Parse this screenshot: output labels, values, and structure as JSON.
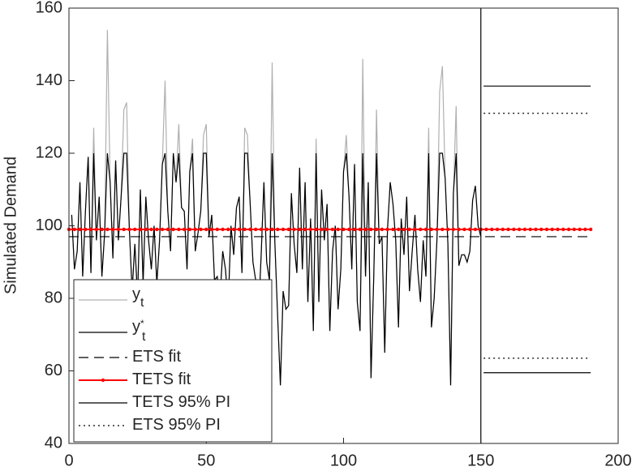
{
  "chart_data": {
    "type": "line",
    "ylabel": "Simulated Demand",
    "xlim": [
      0,
      200
    ],
    "xticks": [
      0,
      50,
      100,
      150,
      200
    ],
    "ylim": [
      40,
      160
    ],
    "yticks": [
      40,
      60,
      80,
      100,
      120,
      140,
      160
    ],
    "vline": 150,
    "legend": "lower left",
    "x": [
      1,
      2,
      3,
      4,
      5,
      6,
      7,
      8,
      9,
      10,
      11,
      12,
      13,
      14,
      15,
      16,
      17,
      18,
      19,
      20,
      21,
      22,
      23,
      24,
      25,
      26,
      27,
      28,
      29,
      30,
      31,
      32,
      33,
      34,
      35,
      36,
      37,
      38,
      39,
      40,
      41,
      42,
      43,
      44,
      45,
      46,
      47,
      48,
      49,
      50,
      51,
      52,
      53,
      54,
      55,
      56,
      57,
      58,
      59,
      60,
      61,
      62,
      63,
      64,
      65,
      66,
      67,
      68,
      69,
      70,
      71,
      72,
      73,
      74,
      75,
      76,
      77,
      78,
      79,
      80,
      81,
      82,
      83,
      84,
      85,
      86,
      87,
      88,
      89,
      90,
      91,
      92,
      93,
      94,
      95,
      96,
      97,
      98,
      99,
      100,
      101,
      102,
      103,
      104,
      105,
      106,
      107,
      108,
      109,
      110,
      111,
      112,
      113,
      114,
      115,
      116,
      117,
      118,
      119,
      120,
      121,
      122,
      123,
      124,
      125,
      126,
      127,
      128,
      129,
      130,
      131,
      132,
      133,
      134,
      135,
      136,
      137,
      138,
      139,
      140,
      141,
      142,
      143,
      144,
      145,
      146,
      147,
      148,
      149,
      150
    ],
    "series": [
      {
        "name": "y",
        "name_sub": "t",
        "color": "#b0b0b0",
        "style": "solid",
        "values": [
          103,
          88,
          93,
          112,
          86,
          104,
          119,
          87,
          127,
          96,
          108,
          86,
          98,
          154,
          112,
          91,
          118,
          96,
          108,
          132,
          134,
          99,
          82,
          95,
          80,
          110,
          84,
          108,
          96,
          88,
          100,
          84,
          96,
          117,
          140,
          104,
          93,
          120,
          112,
          128,
          105,
          104,
          88,
          115,
          124,
          93,
          98,
          104,
          125,
          128,
          97,
          103,
          85,
          86,
          80,
          93,
          88,
          78,
          100,
          92,
          105,
          108,
          87,
          127,
          125,
          106,
          90,
          85,
          75,
          92,
          112,
          90,
          85,
          145,
          95,
          75,
          56,
          82,
          77,
          78,
          109,
          95,
          87,
          116,
          88,
          112,
          79,
          102,
          71,
          124,
          79,
          110,
          96,
          106,
          71,
          93,
          100,
          77,
          88,
          115,
          125,
          108,
          88,
          117,
          79,
          71,
          146,
          86,
          112,
          58,
          86,
          132,
          95,
          97,
          65,
          99,
          112,
          106,
          96,
          72,
          102,
          92,
          108,
          82,
          93,
          103,
          88,
          79,
          96,
          86,
          127,
          72,
          80,
          96,
          137,
          144,
          113,
          95,
          56,
          109,
          133,
          89,
          92,
          92,
          90,
          93,
          107,
          111,
          100,
          97
        ]
      },
      {
        "name": "y",
        "name_sub": "t",
        "name_sup": "*",
        "color": "#000000",
        "style": "solid",
        "values": [
          103,
          88,
          93,
          112,
          86,
          104,
          119,
          87,
          120,
          96,
          108,
          86,
          98,
          120,
          112,
          91,
          118,
          96,
          108,
          120,
          120,
          99,
          82,
          95,
          80,
          110,
          84,
          108,
          96,
          88,
          100,
          84,
          96,
          117,
          120,
          104,
          93,
          120,
          112,
          120,
          105,
          104,
          88,
          115,
          120,
          93,
          98,
          104,
          120,
          120,
          97,
          103,
          85,
          86,
          80,
          93,
          88,
          78,
          100,
          92,
          105,
          108,
          87,
          120,
          120,
          106,
          90,
          85,
          75,
          92,
          112,
          90,
          85,
          120,
          95,
          75,
          56,
          82,
          77,
          78,
          109,
          95,
          87,
          116,
          88,
          112,
          79,
          102,
          71,
          120,
          79,
          110,
          96,
          106,
          71,
          93,
          100,
          77,
          88,
          115,
          120,
          108,
          88,
          117,
          79,
          71,
          120,
          86,
          112,
          58,
          86,
          120,
          95,
          97,
          65,
          99,
          112,
          106,
          96,
          72,
          102,
          92,
          108,
          82,
          93,
          103,
          88,
          79,
          96,
          86,
          120,
          72,
          80,
          96,
          120,
          120,
          113,
          95,
          56,
          109,
          120,
          89,
          92,
          92,
          90,
          93,
          107,
          111,
          100,
          97
        ]
      },
      {
        "name": "ETS fit",
        "color": "#000000",
        "style": "dashed",
        "x": [
          0,
          190
        ],
        "values": [
          97,
          97
        ]
      },
      {
        "name": "TETS fit",
        "color": "#ff0000",
        "style": "solid",
        "marker": "dot",
        "x": [
          0,
          2,
          4,
          6,
          8,
          10,
          12,
          14,
          16,
          18,
          20,
          22,
          24,
          26,
          28,
          30,
          32,
          34,
          36,
          38,
          40,
          42,
          44,
          46,
          48,
          50,
          52,
          54,
          56,
          58,
          60,
          62,
          64,
          66,
          68,
          70,
          72,
          74,
          76,
          78,
          80,
          82,
          84,
          86,
          88,
          90,
          92,
          94,
          96,
          98,
          100,
          102,
          104,
          106,
          108,
          110,
          112,
          114,
          116,
          118,
          120,
          122,
          124,
          126,
          128,
          130,
          132,
          134,
          136,
          138,
          140,
          142,
          144,
          146,
          148,
          150,
          152,
          154,
          156,
          158,
          160,
          162,
          164,
          166,
          168,
          170,
          172,
          174,
          176,
          178,
          180,
          182,
          184,
          186,
          188,
          190
        ],
        "values": [
          99,
          99,
          99,
          99,
          99,
          99,
          99,
          99,
          99,
          99,
          99,
          99,
          99,
          99,
          99,
          99,
          99,
          99,
          99,
          99,
          99,
          99,
          99,
          99,
          99,
          99,
          99,
          99,
          99,
          99,
          99,
          99,
          99,
          99,
          99,
          99,
          99,
          99,
          99,
          99,
          99,
          99,
          99,
          99,
          99,
          99,
          99,
          99,
          99,
          99,
          99,
          99,
          99,
          99,
          99,
          99,
          99,
          99,
          99,
          99,
          99,
          99,
          99,
          99,
          99,
          99,
          99,
          99,
          99,
          99,
          99,
          99,
          99,
          99,
          99,
          99,
          99,
          99,
          99,
          99,
          99,
          99,
          99,
          99,
          99,
          99,
          99,
          99,
          99,
          99,
          99,
          99,
          99,
          99,
          99,
          99
        ]
      },
      {
        "name": "TETS 95% PI",
        "color": "#000000",
        "style": "solid",
        "x": [
          151,
          190
        ],
        "values": [
          138.5,
          138.5
        ]
      },
      {
        "color": "#000000",
        "style": "solid",
        "x": [
          151,
          190
        ],
        "values": [
          59.5,
          59.5
        ]
      },
      {
        "name": "ETS 95% PI",
        "color": "#000000",
        "style": "dotted",
        "x": [
          151,
          190
        ],
        "values": [
          131,
          131
        ]
      },
      {
        "color": "#000000",
        "style": "dotted",
        "x": [
          151,
          190
        ],
        "values": [
          63.5,
          63.5
        ]
      }
    ]
  }
}
